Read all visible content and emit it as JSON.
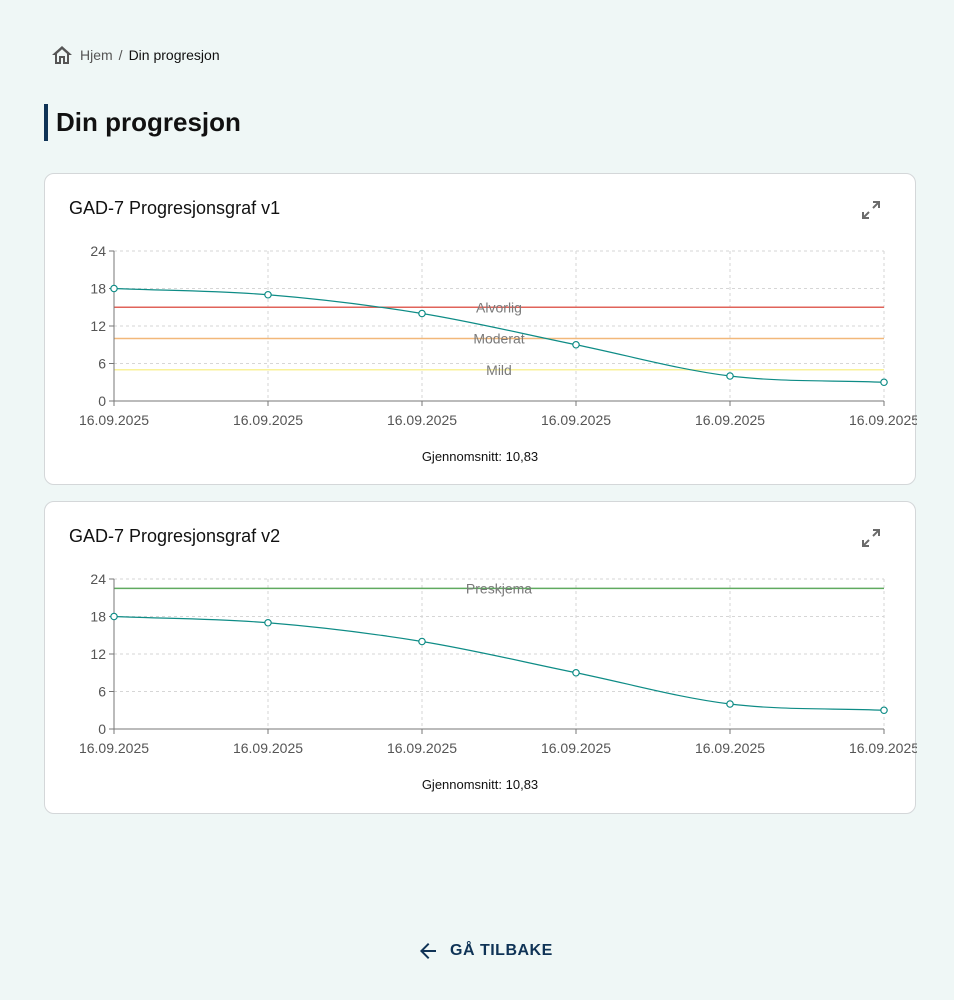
{
  "breadcrumb": {
    "home_label": "Hjem",
    "separator": "/",
    "current": "Din progresjon"
  },
  "page_title": "Din progresjon",
  "cards": [
    {
      "title": "GAD-7 Progresjonsgraf v1",
      "average_text": "Gjennomsnitt: 10,83"
    },
    {
      "title": "GAD-7 Progresjonsgraf v2",
      "average_text": "Gjennomsnitt: 10,83"
    }
  ],
  "back_button": {
    "label": "GÅ TILBAKE"
  },
  "colors": {
    "accent": "#0f3356",
    "series_line": "#0e8c86",
    "alvorlig": "#e0635a",
    "moderat": "#f2b87a",
    "mild": "#f9f29a",
    "preskjema": "#5faa5f"
  },
  "chart_data": [
    {
      "type": "line",
      "categories": [
        "16.09.2025",
        "16.09.2025",
        "16.09.2025",
        "16.09.2025",
        "16.09.2025",
        "16.09.2025"
      ],
      "series": [
        {
          "values": [
            18,
            17,
            14,
            9,
            4,
            3
          ]
        }
      ],
      "ylim": [
        0,
        24
      ],
      "yticks": [
        0,
        6,
        12,
        18,
        24
      ],
      "reference_lines": [
        {
          "label": "Alvorlig",
          "value": 15,
          "color": "#e0635a"
        },
        {
          "label": "Moderat",
          "value": 10,
          "color": "#f2b87a"
        },
        {
          "label": "Mild",
          "value": 5,
          "color": "#f9f29a"
        }
      ],
      "grid": true
    },
    {
      "type": "line",
      "categories": [
        "16.09.2025",
        "16.09.2025",
        "16.09.2025",
        "16.09.2025",
        "16.09.2025",
        "16.09.2025"
      ],
      "series": [
        {
          "values": [
            18,
            17,
            14,
            9,
            4,
            3
          ]
        }
      ],
      "ylim": [
        0,
        24
      ],
      "yticks": [
        0,
        6,
        12,
        18,
        24
      ],
      "reference_lines": [
        {
          "label": "Preskjema",
          "value": 22.5,
          "color": "#5faa5f"
        }
      ],
      "grid": true
    }
  ]
}
